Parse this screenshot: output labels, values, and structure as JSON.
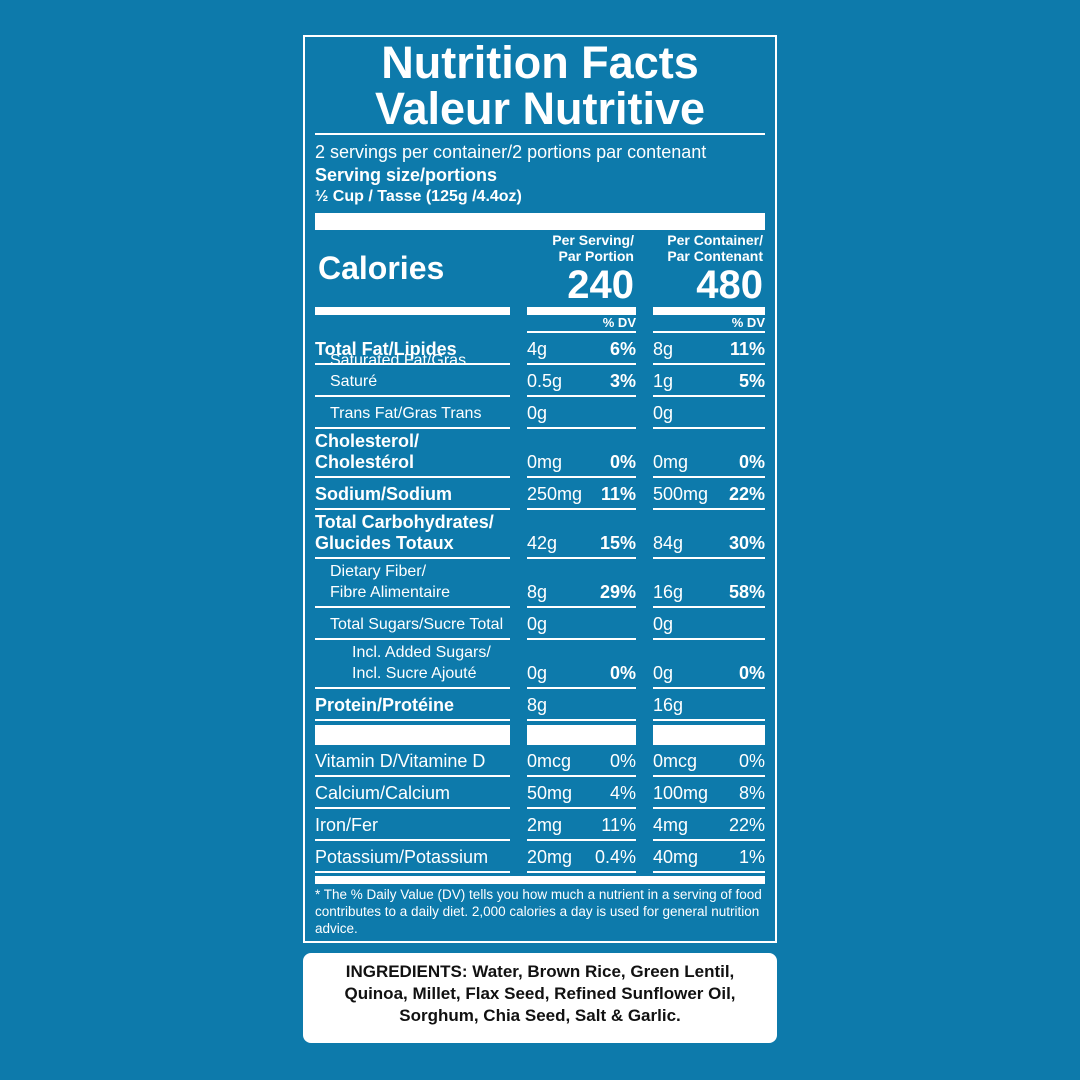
{
  "header": {
    "title_en": "Nutrition Facts",
    "title_fr": "Valeur Nutritive",
    "servings": "2 servings per container/2 portions par contenant",
    "serving_size_label": "Serving size/portions",
    "serving_size": "½ Cup / Tasse (125g /4.4oz)"
  },
  "calories_label": "Calories",
  "dv_header": "% DV",
  "columns": [
    {
      "header": [
        "Per Serving/",
        "Par Portion"
      ],
      "calories": "240"
    },
    {
      "header": [
        "Per Container/",
        "Par Contenant"
      ],
      "calories": "480"
    }
  ],
  "rows": [
    {
      "label": [
        "Total Fat/Lipides"
      ],
      "amounts": [
        "4g",
        "8g"
      ],
      "dv": [
        "6%",
        "11%"
      ],
      "sub": [
        {
          "label": [
            "Saturated Fat/Gras Saturé"
          ],
          "amounts": [
            "0.5g",
            "1g"
          ],
          "dv": [
            "3%",
            "5%"
          ]
        },
        {
          "label": [
            "Trans Fat/Gras Trans"
          ],
          "amounts": [
            "0g",
            "0g"
          ]
        }
      ]
    },
    {
      "label": [
        "Cholesterol/",
        "Cholestérol"
      ],
      "amounts": [
        "0mg",
        "0mg"
      ],
      "dv": [
        "0%",
        "0%"
      ]
    },
    {
      "label": [
        "Sodium/Sodium"
      ],
      "amounts": [
        "250mg",
        "500mg"
      ],
      "dv": [
        "11%",
        "22%"
      ]
    },
    {
      "label": [
        "Total Carbohydrates/",
        "Glucides Totaux"
      ],
      "amounts": [
        "42g",
        "84g"
      ],
      "dv": [
        "15%",
        "30%"
      ],
      "sub": [
        {
          "label": [
            "Dietary Fiber/",
            "Fibre Alimentaire"
          ],
          "amounts": [
            "8g",
            "16g"
          ],
          "dv": [
            "29%",
            "58%"
          ]
        },
        {
          "label": [
            "Total Sugars/Sucre Total"
          ],
          "amounts": [
            "0g",
            "0g"
          ],
          "sub": [
            {
              "label": [
                "Incl. Added Sugars/",
                "Incl. Sucre Ajouté"
              ],
              "amounts": [
                "0g",
                "0g"
              ],
              "dv": [
                "0%",
                "0%"
              ]
            }
          ]
        }
      ]
    },
    {
      "label": [
        "Protein/Protéine"
      ],
      "amounts": [
        "8g",
        "16g"
      ]
    }
  ],
  "vitamins": [
    {
      "label": [
        "Vitamin D/Vitamine D"
      ],
      "amounts": [
        "0mcg",
        "0mcg"
      ],
      "dv": [
        "0%",
        "0%"
      ]
    },
    {
      "label": [
        "Calcium/Calcium"
      ],
      "amounts": [
        "50mg",
        "100mg"
      ],
      "dv": [
        "4%",
        "8%"
      ]
    },
    {
      "label": [
        "Iron/Fer"
      ],
      "amounts": [
        "2mg",
        "4mg"
      ],
      "dv": [
        "11%",
        "22%"
      ]
    },
    {
      "label": [
        "Potassium/Potassium"
      ],
      "amounts": [
        "20mg",
        "40mg"
      ],
      "dv": [
        "0.4%",
        "1%"
      ]
    }
  ],
  "footnote": "* The % Daily Value (DV) tells you how much a nutrient in a serving of food contributes to a daily diet. 2,000 calories a day is used for general nutrition advice.",
  "ingredients": {
    "label": "INGREDIENTS:",
    "text": "Water, Brown Rice, Green Lentil, Quinoa, Millet, Flax Seed, Refined Sunflower Oil, Sorghum, Chia Seed, Salt & Garlic."
  }
}
